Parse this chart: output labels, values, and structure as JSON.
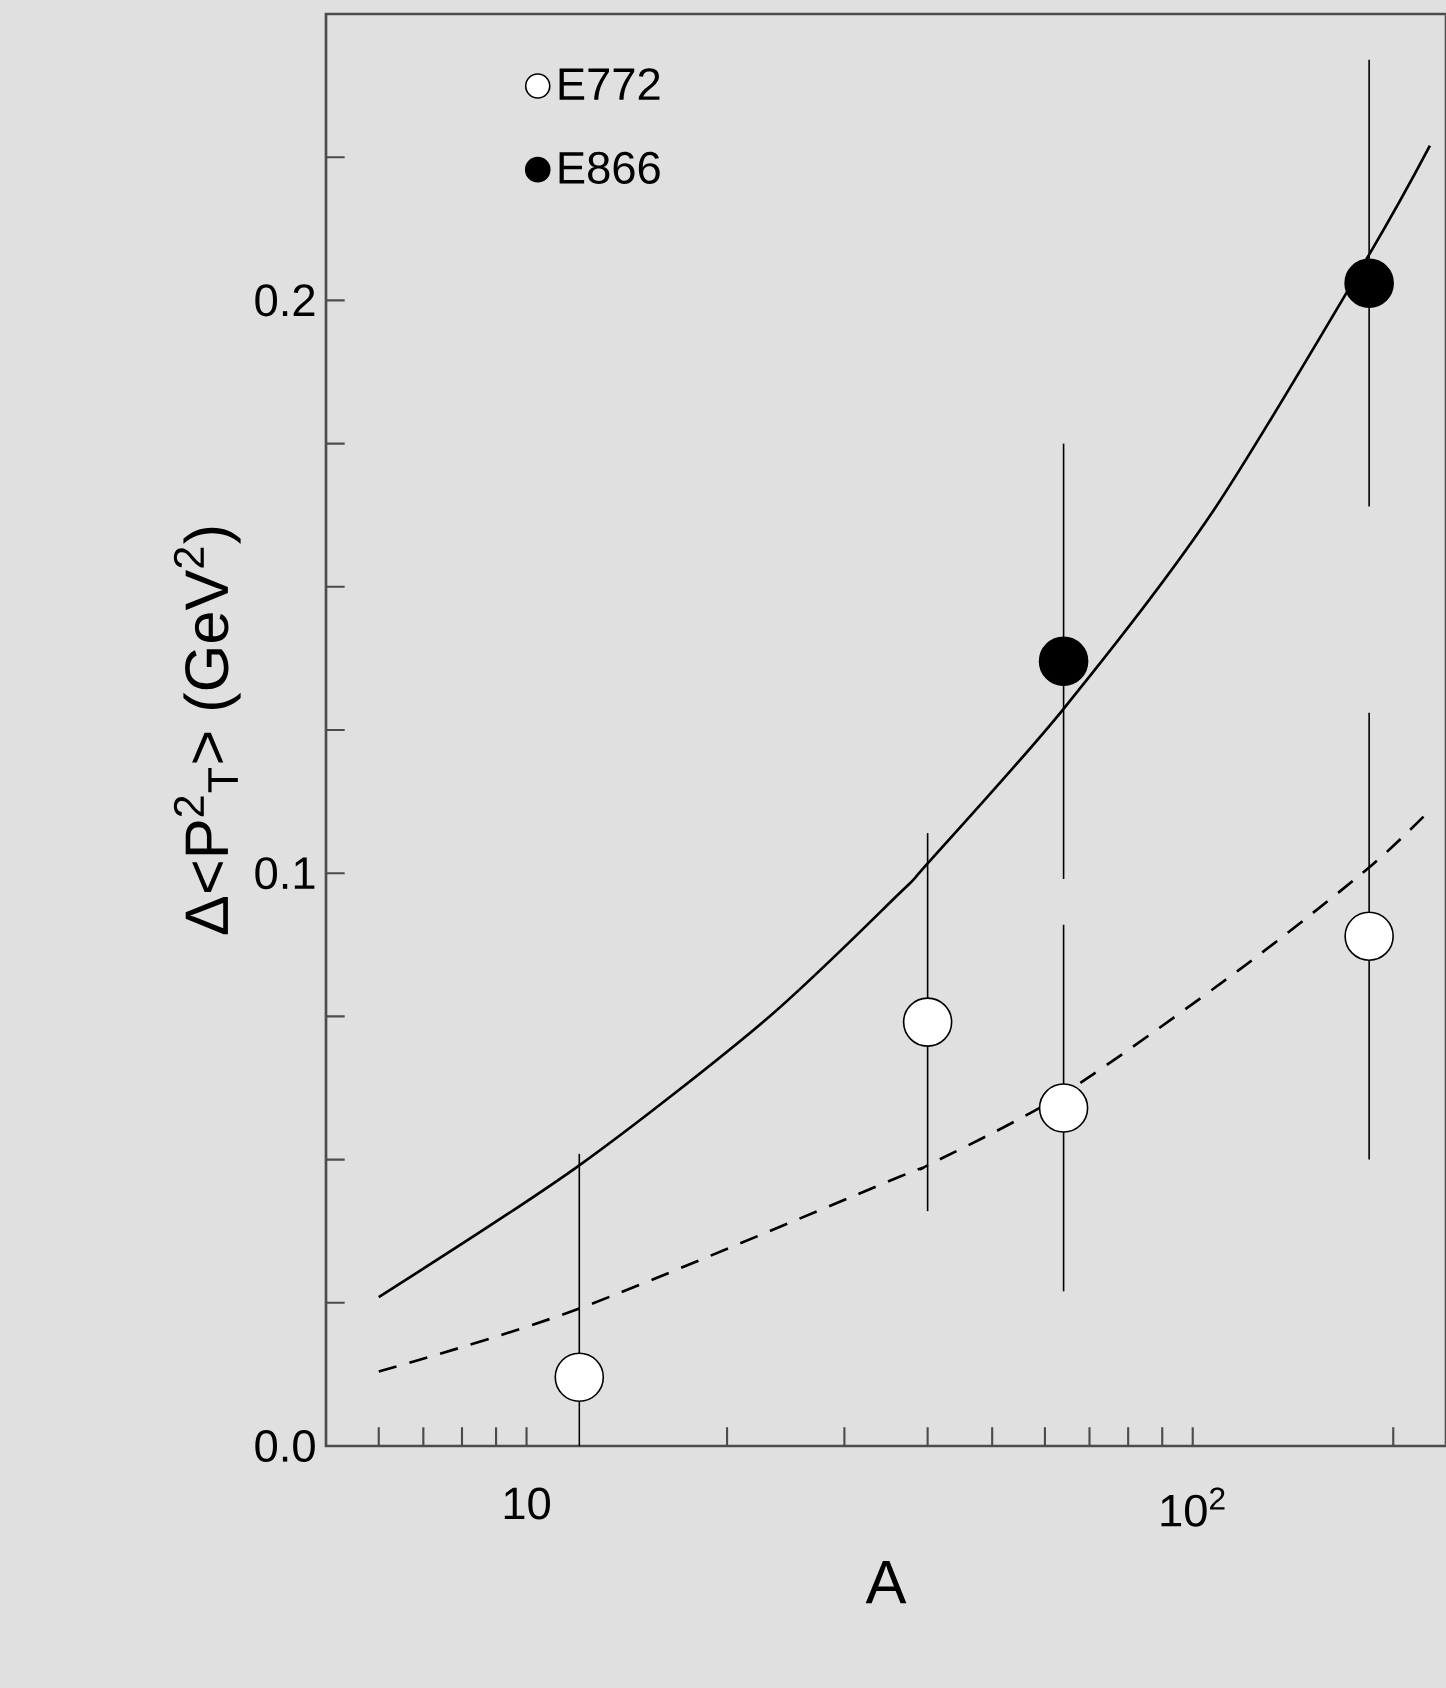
{
  "chart_data": {
    "type": "scatter",
    "xlabel": "A",
    "ylabel": "Δ<P$^{2}$$_{T}$> (GeV$^{2}$)",
    "log": "x",
    "grid": false,
    "legend": "top left",
    "xlim": [
      5,
      240
    ],
    "ylim": [
      0,
      0.25
    ],
    "xticks": [
      {
        "value": 6,
        "label": null
      },
      {
        "value": 7,
        "label": null
      },
      {
        "value": 8,
        "label": null
      },
      {
        "value": 9,
        "label": null
      },
      {
        "value": 10,
        "label": "10"
      },
      {
        "value": 20,
        "label": null
      },
      {
        "value": 30,
        "label": null
      },
      {
        "value": 40,
        "label": null
      },
      {
        "value": 50,
        "label": null
      },
      {
        "value": 60,
        "label": null
      },
      {
        "value": 70,
        "label": null
      },
      {
        "value": 80,
        "label": null
      },
      {
        "value": 90,
        "label": null
      },
      {
        "value": 100,
        "label": "10$^{2}$"
      },
      {
        "value": 200,
        "label": null
      }
    ],
    "yticks": [
      {
        "value": 0,
        "label": "0.0"
      },
      {
        "value": 0.025,
        "label": null
      },
      {
        "value": 0.05,
        "label": null
      },
      {
        "value": 0.075,
        "label": null
      },
      {
        "value": 0.1,
        "label": "0.1"
      },
      {
        "value": 0.125,
        "label": null
      },
      {
        "value": 0.15,
        "label": null
      },
      {
        "value": 0.175,
        "label": null
      },
      {
        "value": 0.2,
        "label": "0.2"
      },
      {
        "value": 0.225,
        "label": null
      }
    ],
    "series": [
      {
        "name": "E772",
        "marker": "circle",
        "color": "#ffffff",
        "x": [
          12,
          40,
          64,
          184
        ],
        "values": [
          0.012,
          0.074,
          0.059,
          0.089
        ],
        "errors": [
          [
            0,
            0.051
          ],
          [
            0.041,
            0.107
          ],
          [
            0.027,
            0.091
          ],
          [
            0.05,
            0.128
          ]
        ]
      },
      {
        "name": "E866",
        "marker": "circle",
        "color": "#000000",
        "x": [
          64,
          184
        ],
        "values": [
          0.137,
          0.203
        ],
        "errors": [
          [
            0.099,
            0.175
          ],
          [
            0.164,
            0.242
          ]
        ]
      },
      {
        "type": "line",
        "marker": "none",
        "line_style": "solid",
        "color": "#000000",
        "x": [
          6,
          12,
          22.9,
          36.3,
          40,
          64,
          107,
          184,
          227
        ],
        "values": [
          0.026,
          0.049,
          0.0745,
          0.0965,
          0.1017,
          0.1287,
          0.163,
          0.208,
          0.227
        ]
      },
      {
        "type": "line",
        "marker": "none",
        "line_style": "dashed",
        "color": "#000000",
        "x": [
          6,
          12,
          36.3,
          40,
          64,
          117,
          184,
          227
        ],
        "values": [
          0.013,
          0.024,
          0.047,
          0.049,
          0.0615,
          0.083,
          0.101,
          0.111
        ]
      }
    ]
  }
}
